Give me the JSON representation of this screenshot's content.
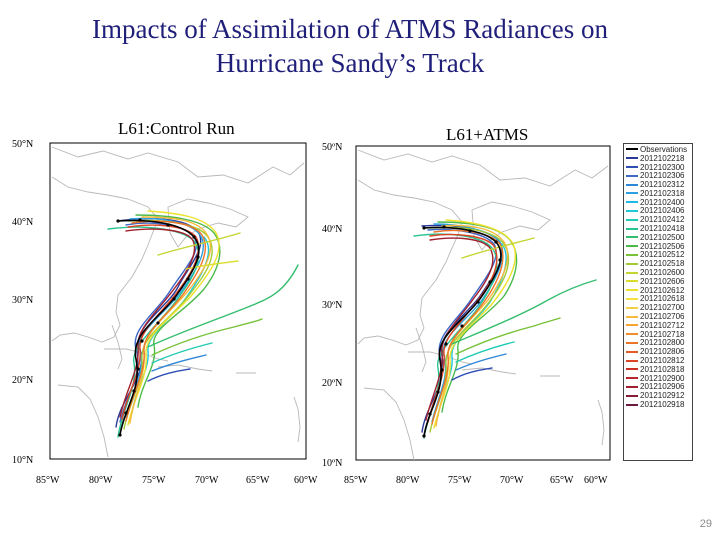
{
  "slide": {
    "title_line1": "Impacts of  Assimilation of ATMS Radiances on",
    "title_line2": "Hurricane Sandy’s Track",
    "page_number": "29"
  },
  "maps": [
    {
      "label": "L61:Control Run",
      "lat_labels": [
        "50°N",
        "40°N",
        "30°N",
        "20°N",
        "10°N"
      ],
      "lon_labels": [
        "85°W",
        "80°W",
        "75°W",
        "70°W",
        "65°W",
        "60°W"
      ]
    },
    {
      "label": "L61+ATMS",
      "lat_labels": [
        "50ºN",
        "40ºN",
        "30ºN",
        "20ºN",
        "10ºN"
      ],
      "lon_labels": [
        "85°W",
        "80°W",
        "75°W",
        "70°W",
        "65°W",
        "60°W"
      ]
    }
  ],
  "legend": {
    "header": "Observations",
    "entries": [
      {
        "label": "2012102218",
        "color": "#2a3a9a"
      },
      {
        "label": "2012102300",
        "color": "#2f4fb5"
      },
      {
        "label": "2012102306",
        "color": "#3d68c8"
      },
      {
        "label": "2012102312",
        "color": "#2f86d6"
      },
      {
        "label": "2012102318",
        "color": "#2ba0e0"
      },
      {
        "label": "2012102400",
        "color": "#22b8e6"
      },
      {
        "label": "2012102406",
        "color": "#20c8d6"
      },
      {
        "label": "2012102412",
        "color": "#22cbb4"
      },
      {
        "label": "2012102418",
        "color": "#2ac494"
      },
      {
        "label": "2012102500",
        "color": "#35be6e"
      },
      {
        "label": "2012102506",
        "color": "#4cba4a"
      },
      {
        "label": "2012102512",
        "color": "#78c23a"
      },
      {
        "label": "2012102518",
        "color": "#a2cc34"
      },
      {
        "label": "2012102600",
        "color": "#c4d52f"
      },
      {
        "label": "2012102606",
        "color": "#dcdc2c"
      },
      {
        "label": "2012102612",
        "color": "#ece22c"
      },
      {
        "label": "2012102618",
        "color": "#f5e040"
      },
      {
        "label": "2012102700",
        "color": "#f6d04a"
      },
      {
        "label": "2012102706",
        "color": "#f6bb3c"
      },
      {
        "label": "2012102712",
        "color": "#f4a432"
      },
      {
        "label": "2012102718",
        "color": "#f08c2c"
      },
      {
        "label": "2012102800",
        "color": "#ec7428"
      },
      {
        "label": "2012102806",
        "color": "#e65c26"
      },
      {
        "label": "2012102812",
        "color": "#dc4424"
      },
      {
        "label": "2012102818",
        "color": "#cc3024"
      },
      {
        "label": "2012102900",
        "color": "#b82628"
      },
      {
        "label": "2012102906",
        "color": "#a0202c"
      },
      {
        "label": "2012102912",
        "color": "#861c36"
      },
      {
        "label": "2012102918",
        "color": "#6c1a40"
      }
    ]
  }
}
